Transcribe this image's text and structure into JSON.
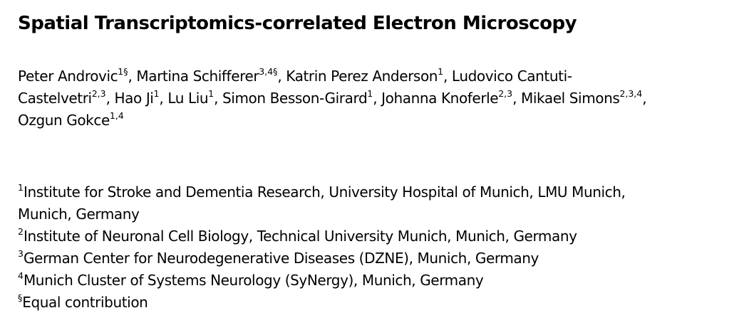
{
  "title": "Spatial Transcriptomics-correlated Electron Microscopy",
  "authors": [
    {
      "name": "Peter Androvic",
      "sup": "1§",
      "sep": ", "
    },
    {
      "name": "Martina Schifferer",
      "sup": "3,4§",
      "sep": ", "
    },
    {
      "name": "Katrin Perez Anderson",
      "sup": "1",
      "sep": ", "
    },
    {
      "name": "Ludovico Cantuti-Castelvetri",
      "sup": "2,3",
      "sep": ", "
    },
    {
      "name": "Hao Ji",
      "sup": "1",
      "sep": ", "
    },
    {
      "name": "Lu Liu",
      "sup": "1",
      "sep": ", "
    },
    {
      "name": "Simon Besson-Girard",
      "sup": "1",
      "sep": ", "
    },
    {
      "name": "Johanna Knoferle",
      "sup": "2,3",
      "sep": ", "
    },
    {
      "name": "Mikael Simons",
      "sup": "2,3,4",
      "sep": ","
    },
    {
      "name": "Ozgun Gokce",
      "sup": "1,4",
      "sep": ""
    }
  ],
  "author_text": {
    "l1_a": "Peter Androvic",
    "l1_a_sup": "1§",
    "l1_b": ", Martina Schifferer",
    "l1_b_sup": "3,4§",
    "l1_c": ", Katrin Perez Anderson",
    "l1_c_sup": "1",
    "l1_d": ", Ludovico Cantuti-",
    "l2_a": "Castelvetri",
    "l2_a_sup": "2,3",
    "l2_b": ", Hao Ji",
    "l2_b_sup": "1",
    "l2_c": ", Lu Liu",
    "l2_c_sup": "1",
    "l2_d": ", Simon Besson-Girard",
    "l2_d_sup": "1",
    "l2_e": ", Johanna Knoferle",
    "l2_e_sup": "2,3",
    "l2_f": ", Mikael Simons",
    "l2_f_sup": "2,3,4",
    "l2_g": ",",
    "l3_a": "Ozgun Gokce",
    "l3_a_sup": "1,4"
  },
  "affiliations": {
    "a1_sup": "1",
    "a1_line1": "Institute for Stroke and Dementia Research, University Hospital of Munich, LMU Munich,",
    "a1_line2": "Munich, Germany",
    "a2_sup": "2",
    "a2": "Institute of Neuronal Cell Biology, Technical University Munich, Munich, Germany",
    "a3_sup": "3",
    "a3": "German Center for Neurodegenerative Diseases (DZNE), Munich, Germany",
    "a4_sup": "4",
    "a4": "Munich Cluster of Systems Neurology (SyNergy), Munich, Germany",
    "eq_sup": "§",
    "eq": "Equal contribution"
  }
}
